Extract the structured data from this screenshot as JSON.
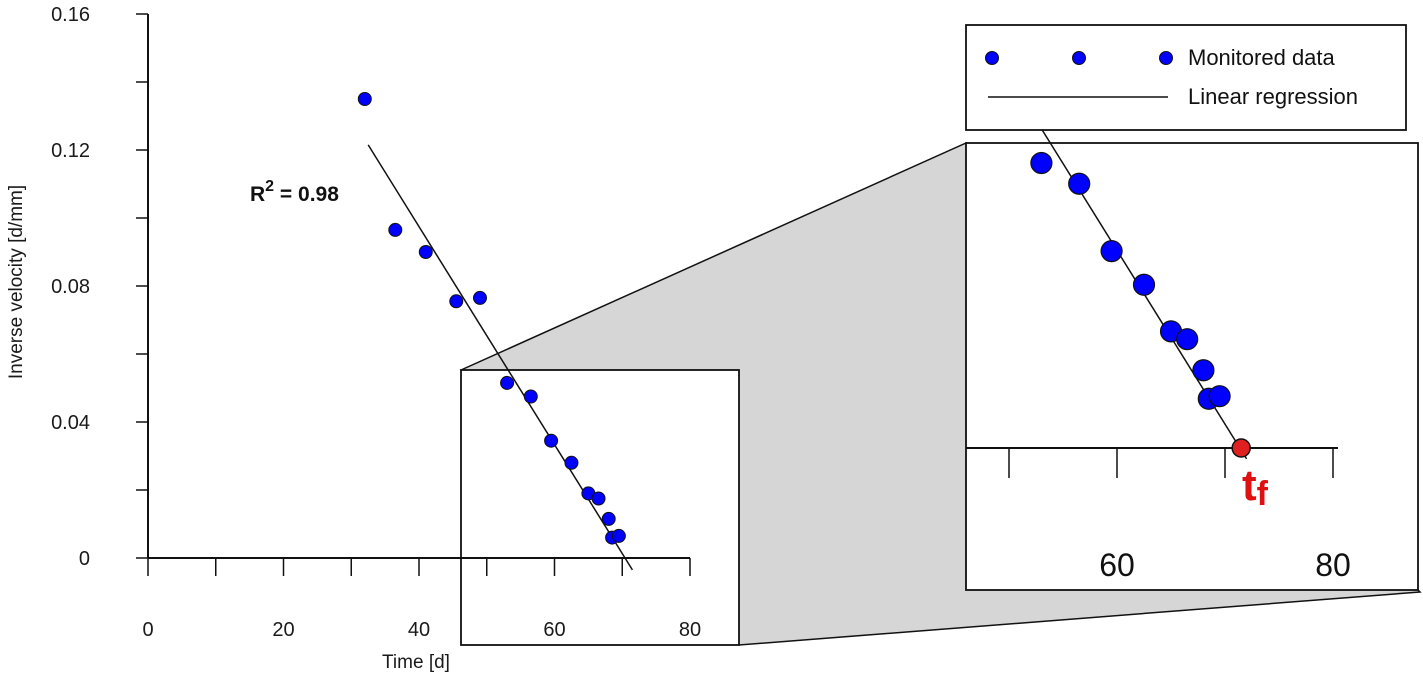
{
  "chart_data": {
    "type": "scatter",
    "xlabel": "Time [d]",
    "ylabel": "Inverse velocity [d/mm]",
    "xlim": [
      0,
      80
    ],
    "ylim": [
      0,
      0.16
    ],
    "x_ticks": [
      "0",
      "20",
      "40",
      "60",
      "80"
    ],
    "y_ticks": [
      "0",
      "0.04",
      "0.08",
      "0.12",
      "0.16"
    ],
    "series": [
      {
        "name": "Monitored data",
        "marker_color": "#0000ff",
        "x": [
          32.0,
          36.5,
          41.0,
          45.5,
          49.0,
          53.0,
          56.5,
          59.5,
          62.5,
          65.0,
          66.5,
          68.0,
          68.5,
          69.5
        ],
        "y": [
          0.135,
          0.0965,
          0.09,
          0.0755,
          0.0765,
          0.0515,
          0.0475,
          0.0345,
          0.028,
          0.019,
          0.0175,
          0.0115,
          0.006,
          0.0065
        ]
      }
    ],
    "regression": {
      "name": "Linear regression",
      "x": [
        32.5,
        71.5
      ],
      "y": [
        0.1215,
        -0.0035
      ],
      "r2_label": "R",
      "r2_sup": "2",
      "r2_value": " = 0.98"
    },
    "legend": {
      "position": "top-right",
      "entries": [
        "Monitored data",
        "Linear regression"
      ]
    },
    "zoom": {
      "x_ticks": [
        "60",
        "80"
      ],
      "tf_point": {
        "x": 71.5,
        "y": -0.0035,
        "color": "#e02020"
      },
      "tf_label": "t",
      "tf_sub": "f"
    }
  }
}
